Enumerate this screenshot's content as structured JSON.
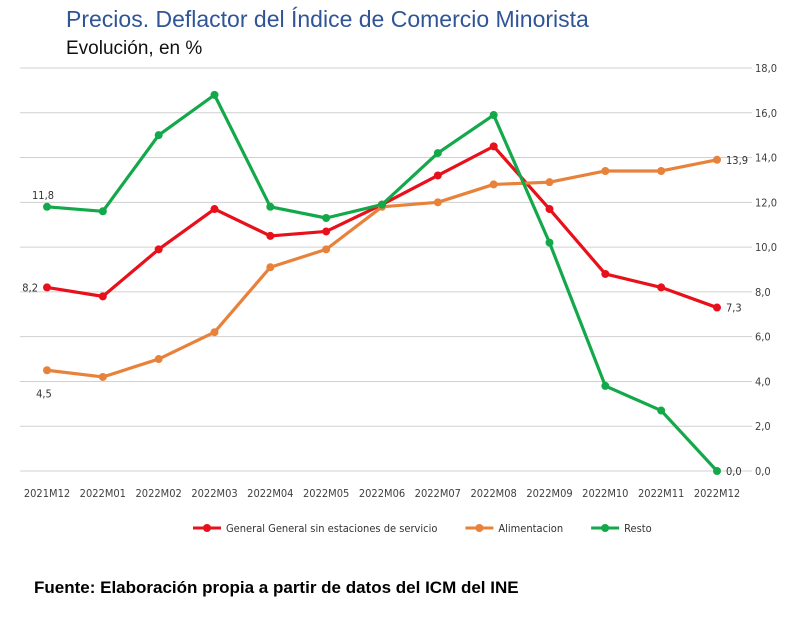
{
  "title": "Precios. Deflactor del Índice de Comercio Minorista",
  "subtitle": "Evolución, en %",
  "source": "Fuente: Elaboración propia a partir de datos del ICM del INE",
  "chart_data": {
    "type": "line",
    "categories": [
      "2021M12",
      "2022M01",
      "2022M02",
      "2022M03",
      "2022M04",
      "2022M05",
      "2022M06",
      "2022M07",
      "2022M08",
      "2022M09",
      "2022M10",
      "2022M11",
      "2022M12"
    ],
    "y_ticks": [
      "0,0",
      "2,0",
      "4,0",
      "6,0",
      "8,0",
      "10,0",
      "12,0",
      "14,0",
      "16,0",
      "18,0"
    ],
    "ylim": [
      0,
      18
    ],
    "y_axis_position": "right",
    "grid": true,
    "legend_position": "bottom",
    "series": [
      {
        "name": "General General sin estaciones de servicio",
        "color": "#e8101a",
        "values": [
          8.2,
          7.8,
          9.9,
          11.7,
          10.5,
          10.7,
          11.9,
          13.2,
          14.5,
          11.7,
          8.8,
          8.2,
          7.3
        ],
        "labels": [
          {
            "index": 0,
            "text": "8,2",
            "side": "left"
          },
          {
            "index": 12,
            "text": "7,3",
            "side": "right"
          }
        ]
      },
      {
        "name": "Alimentacion",
        "color": "#e8823a",
        "values": [
          4.5,
          4.2,
          5.0,
          6.2,
          9.1,
          9.9,
          11.8,
          12.0,
          12.8,
          12.9,
          13.4,
          13.4,
          13.9
        ],
        "labels": [
          {
            "index": 0,
            "text": "4,5",
            "side": "below"
          },
          {
            "index": 12,
            "text": "13,9",
            "side": "right"
          }
        ]
      },
      {
        "name": "Resto",
        "color": "#13a84a",
        "values": [
          11.8,
          11.6,
          15.0,
          16.8,
          11.8,
          11.3,
          11.9,
          14.2,
          15.9,
          10.2,
          3.8,
          2.7,
          0.0
        ],
        "labels": [
          {
            "index": 0,
            "text": "11,8",
            "side": "above"
          },
          {
            "index": 12,
            "text": "0,0",
            "side": "right"
          }
        ]
      }
    ]
  }
}
